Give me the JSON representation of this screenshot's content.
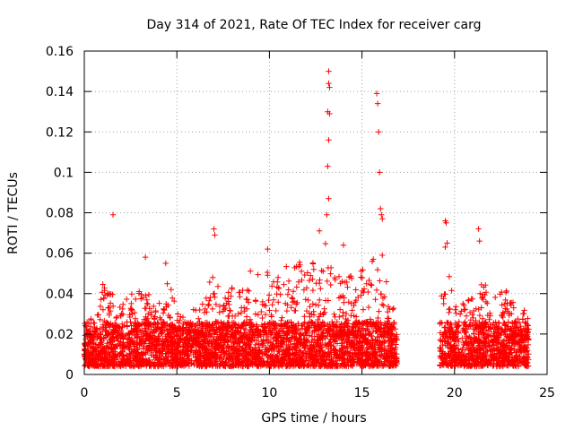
{
  "chart_data": {
    "type": "scatter",
    "title": "Day 314 of 2021, Rate Of TEC Index for receiver carg",
    "xlabel": "GPS time / hours",
    "ylabel": "ROTI / TECUs",
    "xlim": [
      0,
      25
    ],
    "ylim": [
      0,
      0.16
    ],
    "x_ticks": [
      "0",
      "5",
      "10",
      "15",
      "20",
      "25"
    ],
    "y_ticks": [
      "0",
      "0.02",
      "0.04",
      "0.06",
      "0.08",
      "0.1",
      "0.12",
      "0.14",
      "0.16"
    ],
    "grid": true,
    "marker": "+",
    "series_color": "#ff0000",
    "data_gap_hours": [
      16.9,
      19.2
    ],
    "highlighted_points": [
      {
        "x": 1.55,
        "y": 0.079
      },
      {
        "x": 4.4,
        "y": 0.055
      },
      {
        "x": 7.0,
        "y": 0.072
      },
      {
        "x": 7.05,
        "y": 0.069
      },
      {
        "x": 13.2,
        "y": 0.15
      },
      {
        "x": 13.2,
        "y": 0.144
      },
      {
        "x": 13.25,
        "y": 0.142
      },
      {
        "x": 13.15,
        "y": 0.13
      },
      {
        "x": 13.25,
        "y": 0.129
      },
      {
        "x": 13.2,
        "y": 0.116
      },
      {
        "x": 13.15,
        "y": 0.103
      },
      {
        "x": 13.2,
        "y": 0.087
      },
      {
        "x": 13.1,
        "y": 0.079
      },
      {
        "x": 15.8,
        "y": 0.139
      },
      {
        "x": 15.85,
        "y": 0.134
      },
      {
        "x": 15.9,
        "y": 0.12
      },
      {
        "x": 15.95,
        "y": 0.1
      },
      {
        "x": 16.0,
        "y": 0.082
      },
      {
        "x": 16.05,
        "y": 0.079
      },
      {
        "x": 16.1,
        "y": 0.077
      },
      {
        "x": 19.5,
        "y": 0.076
      },
      {
        "x": 19.55,
        "y": 0.075
      },
      {
        "x": 19.6,
        "y": 0.065
      },
      {
        "x": 19.5,
        "y": 0.063
      },
      {
        "x": 21.3,
        "y": 0.072
      },
      {
        "x": 21.35,
        "y": 0.066
      },
      {
        "x": 12.7,
        "y": 0.071
      },
      {
        "x": 14.0,
        "y": 0.064
      },
      {
        "x": 3.3,
        "y": 0.058
      },
      {
        "x": 9.9,
        "y": 0.062
      }
    ],
    "envelope": [
      {
        "x": 0.0,
        "y": 0.022
      },
      {
        "x": 0.5,
        "y": 0.03
      },
      {
        "x": 1.0,
        "y": 0.045
      },
      {
        "x": 1.5,
        "y": 0.04
      },
      {
        "x": 2.0,
        "y": 0.035
      },
      {
        "x": 2.5,
        "y": 0.04
      },
      {
        "x": 3.0,
        "y": 0.042
      },
      {
        "x": 3.5,
        "y": 0.04
      },
      {
        "x": 4.0,
        "y": 0.035
      },
      {
        "x": 4.5,
        "y": 0.05
      },
      {
        "x": 5.0,
        "y": 0.032
      },
      {
        "x": 5.5,
        "y": 0.03
      },
      {
        "x": 6.0,
        "y": 0.034
      },
      {
        "x": 6.5,
        "y": 0.036
      },
      {
        "x": 7.0,
        "y": 0.055
      },
      {
        "x": 7.5,
        "y": 0.036
      },
      {
        "x": 8.0,
        "y": 0.046
      },
      {
        "x": 8.5,
        "y": 0.045
      },
      {
        "x": 9.0,
        "y": 0.052
      },
      {
        "x": 9.5,
        "y": 0.05
      },
      {
        "x": 10.0,
        "y": 0.055
      },
      {
        "x": 10.5,
        "y": 0.052
      },
      {
        "x": 11.0,
        "y": 0.054
      },
      {
        "x": 11.5,
        "y": 0.056
      },
      {
        "x": 12.0,
        "y": 0.056
      },
      {
        "x": 12.5,
        "y": 0.055
      },
      {
        "x": 13.0,
        "y": 0.066
      },
      {
        "x": 13.5,
        "y": 0.05
      },
      {
        "x": 14.0,
        "y": 0.05
      },
      {
        "x": 14.5,
        "y": 0.05
      },
      {
        "x": 15.0,
        "y": 0.052
      },
      {
        "x": 15.5,
        "y": 0.055
      },
      {
        "x": 16.0,
        "y": 0.065
      },
      {
        "x": 16.5,
        "y": 0.04
      },
      {
        "x": 16.9,
        "y": 0.032
      },
      {
        "x": 19.2,
        "y": 0.045
      },
      {
        "x": 19.5,
        "y": 0.055
      },
      {
        "x": 20.0,
        "y": 0.04
      },
      {
        "x": 20.5,
        "y": 0.035
      },
      {
        "x": 21.0,
        "y": 0.04
      },
      {
        "x": 21.5,
        "y": 0.05
      },
      {
        "x": 22.0,
        "y": 0.04
      },
      {
        "x": 22.5,
        "y": 0.045
      },
      {
        "x": 23.0,
        "y": 0.045
      },
      {
        "x": 23.5,
        "y": 0.04
      },
      {
        "x": 24.0,
        "y": 0.03
      }
    ]
  }
}
